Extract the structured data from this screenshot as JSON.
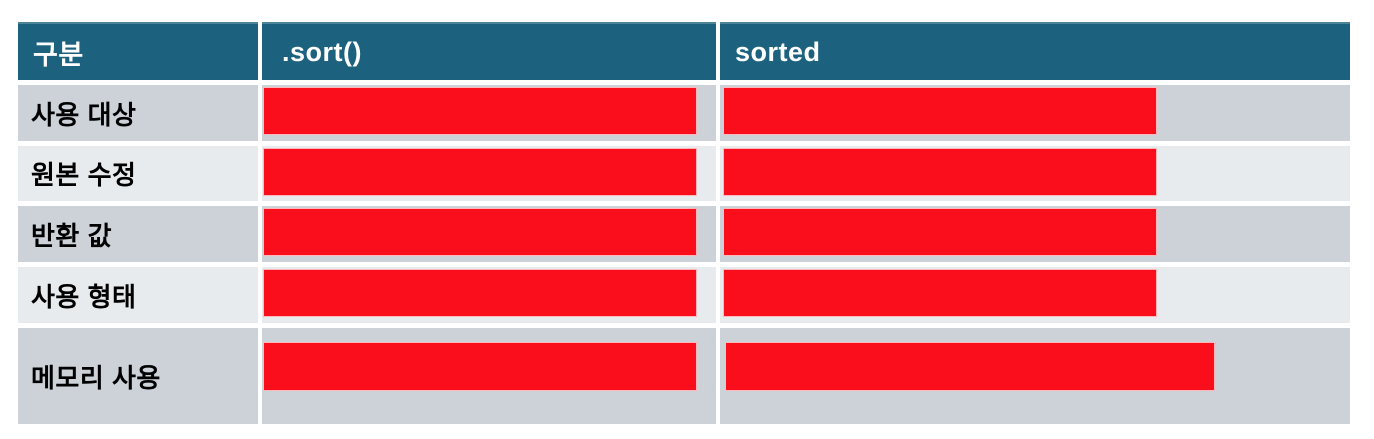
{
  "colors": {
    "background": "#FFFFFF",
    "header_bg": "#1C627E",
    "header_text": "#FFFFFF",
    "row_dark": "#CDD2D9",
    "row_light": "#E8EBEE",
    "redaction": "#FA0E1B",
    "label_text": "#000000"
  },
  "table": {
    "header": {
      "category": "구분",
      "sort": ".sort()",
      "sorted": "sorted"
    },
    "rows": [
      {
        "label": "사용 대상",
        "sort_cell": {
          "redacted": true
        },
        "sorted_cell": {
          "redacted": true
        }
      },
      {
        "label": "원본 수정",
        "sort_cell": {
          "redacted": true
        },
        "sorted_cell": {
          "redacted": true
        }
      },
      {
        "label": "반환 값",
        "sort_cell": {
          "redacted": true
        },
        "sorted_cell": {
          "redacted": true
        }
      },
      {
        "label": "사용 형태",
        "sort_cell": {
          "redacted": true
        },
        "sorted_cell": {
          "redacted": true
        }
      },
      {
        "label": "메모리 사용",
        "sort_cell": {
          "redacted": true
        },
        "sorted_cell": {
          "redacted": true
        }
      }
    ]
  }
}
